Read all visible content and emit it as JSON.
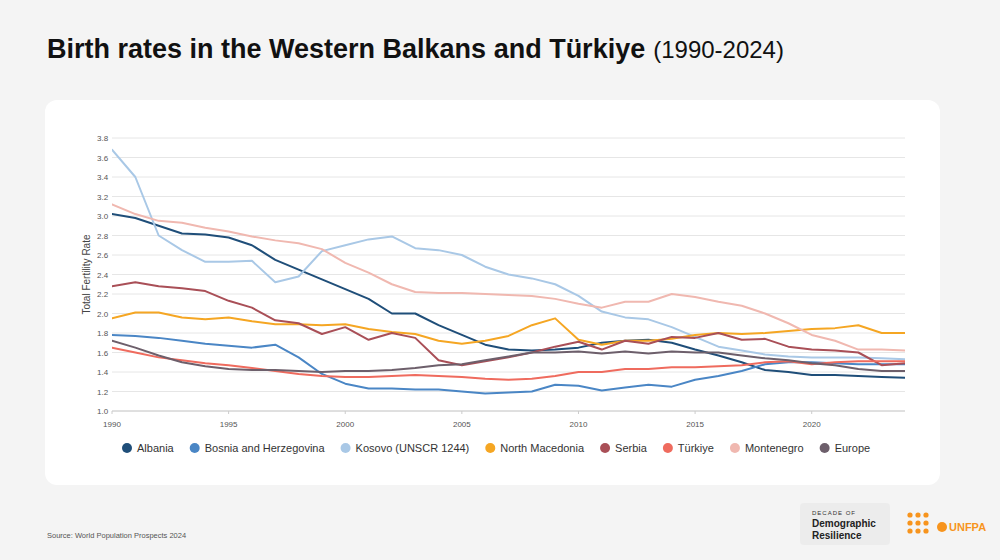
{
  "chart_data": {
    "type": "line",
    "title": "Birth rates in the Western Balkans and Türkiye",
    "subtitle": "(1990-2024)",
    "y_label": "Total Fertility Rate",
    "source": "Source: World Population Prospects 2024",
    "annotations": [
      "DECADE OF",
      "Demographic",
      "Resilience",
      "UNFPA"
    ],
    "x": [
      1990,
      1991,
      1992,
      1993,
      1994,
      1995,
      1996,
      1997,
      1998,
      1999,
      2000,
      2001,
      2002,
      2003,
      2004,
      2005,
      2006,
      2007,
      2008,
      2009,
      2010,
      2011,
      2012,
      2013,
      2014,
      2015,
      2016,
      2017,
      2018,
      2019,
      2020,
      2021,
      2022,
      2023,
      2024
    ],
    "xlim": [
      1990,
      2024
    ],
    "xticks": [
      1990,
      1995,
      2000,
      2005,
      2010,
      2015,
      2020
    ],
    "ylim": [
      1.0,
      3.8
    ],
    "yticks": [
      {
        "value": 1.0,
        "label": "1.0"
      },
      1.2,
      1.4,
      1.6,
      1.8,
      {
        "value": 2.0,
        "label": "2.0"
      },
      2.2,
      2.4,
      2.6,
      2.8,
      {
        "value": 3.0,
        "label": "3.0"
      },
      3.2,
      3.4,
      3.6,
      3.8
    ],
    "grid": true,
    "legend": "bottom",
    "series": [
      {
        "name": "Albania",
        "color": "#1f4e79",
        "values": [
          3.02,
          2.98,
          2.9,
          2.82,
          2.81,
          2.78,
          2.7,
          2.55,
          2.45,
          2.35,
          2.25,
          2.15,
          2.0,
          2.0,
          1.88,
          1.78,
          1.68,
          1.63,
          1.62,
          1.63,
          1.65,
          1.7,
          1.72,
          1.73,
          1.7,
          1.63,
          1.57,
          1.5,
          1.42,
          1.4,
          1.37,
          1.37,
          1.36,
          1.35,
          1.34
        ]
      },
      {
        "name": "Bosnia and Herzegovina",
        "color": "#4a86c5",
        "values": [
          1.78,
          1.77,
          1.75,
          1.72,
          1.69,
          1.67,
          1.65,
          1.68,
          1.55,
          1.38,
          1.28,
          1.23,
          1.23,
          1.22,
          1.22,
          1.2,
          1.18,
          1.19,
          1.2,
          1.27,
          1.26,
          1.21,
          1.24,
          1.27,
          1.25,
          1.32,
          1.36,
          1.41,
          1.48,
          1.5,
          1.5,
          1.49,
          1.48,
          1.48,
          1.48
        ]
      },
      {
        "name": "Kosovo (UNSCR 1244)",
        "color": "#a9c8e6",
        "values": [
          3.68,
          3.4,
          2.8,
          2.65,
          2.53,
          2.53,
          2.54,
          2.32,
          2.38,
          2.64,
          2.7,
          2.76,
          2.79,
          2.67,
          2.65,
          2.6,
          2.48,
          2.4,
          2.36,
          2.3,
          2.18,
          2.02,
          1.96,
          1.94,
          1.86,
          1.76,
          1.66,
          1.62,
          1.58,
          1.56,
          1.55,
          1.55,
          1.55,
          1.54,
          1.53
        ]
      },
      {
        "name": "North Macedonia",
        "color": "#f5a623",
        "values": [
          1.95,
          2.01,
          2.01,
          1.96,
          1.94,
          1.96,
          1.92,
          1.89,
          1.89,
          1.88,
          1.89,
          1.84,
          1.81,
          1.79,
          1.72,
          1.69,
          1.72,
          1.77,
          1.88,
          1.95,
          1.73,
          1.68,
          1.72,
          1.72,
          1.74,
          1.78,
          1.8,
          1.79,
          1.8,
          1.82,
          1.84,
          1.85,
          1.88,
          1.8,
          1.8
        ]
      },
      {
        "name": "Serbia",
        "color": "#a94f57",
        "values": [
          2.28,
          2.32,
          2.28,
          2.26,
          2.23,
          2.13,
          2.06,
          1.93,
          1.9,
          1.79,
          1.86,
          1.73,
          1.8,
          1.75,
          1.52,
          1.47,
          1.51,
          1.55,
          1.6,
          1.66,
          1.71,
          1.63,
          1.72,
          1.69,
          1.76,
          1.75,
          1.8,
          1.73,
          1.74,
          1.66,
          1.63,
          1.62,
          1.6,
          1.47,
          1.49
        ]
      },
      {
        "name": "Türkiye",
        "color": "#ef6b5e",
        "values": [
          1.65,
          1.6,
          1.55,
          1.52,
          1.49,
          1.47,
          1.44,
          1.41,
          1.38,
          1.36,
          1.35,
          1.35,
          1.36,
          1.37,
          1.36,
          1.35,
          1.33,
          1.32,
          1.33,
          1.36,
          1.4,
          1.4,
          1.43,
          1.43,
          1.45,
          1.45,
          1.46,
          1.47,
          1.5,
          1.51,
          1.48,
          1.5,
          1.51,
          1.51,
          1.51
        ]
      },
      {
        "name": "Montenegro",
        "color": "#f0b8b0",
        "values": [
          3.12,
          3.02,
          2.95,
          2.93,
          2.88,
          2.84,
          2.79,
          2.75,
          2.72,
          2.66,
          2.52,
          2.42,
          2.3,
          2.22,
          2.21,
          2.21,
          2.2,
          2.19,
          2.18,
          2.15,
          2.1,
          2.06,
          2.12,
          2.12,
          2.2,
          2.17,
          2.12,
          2.08,
          2.0,
          1.9,
          1.78,
          1.72,
          1.63,
          1.63,
          1.62
        ]
      },
      {
        "name": "Europe",
        "color": "#6d5f6b",
        "values": [
          1.72,
          1.65,
          1.57,
          1.5,
          1.46,
          1.43,
          1.42,
          1.42,
          1.41,
          1.4,
          1.41,
          1.41,
          1.42,
          1.44,
          1.47,
          1.48,
          1.52,
          1.56,
          1.6,
          1.6,
          1.61,
          1.59,
          1.61,
          1.59,
          1.61,
          1.6,
          1.6,
          1.57,
          1.54,
          1.52,
          1.49,
          1.47,
          1.43,
          1.41,
          1.41
        ]
      }
    ]
  }
}
